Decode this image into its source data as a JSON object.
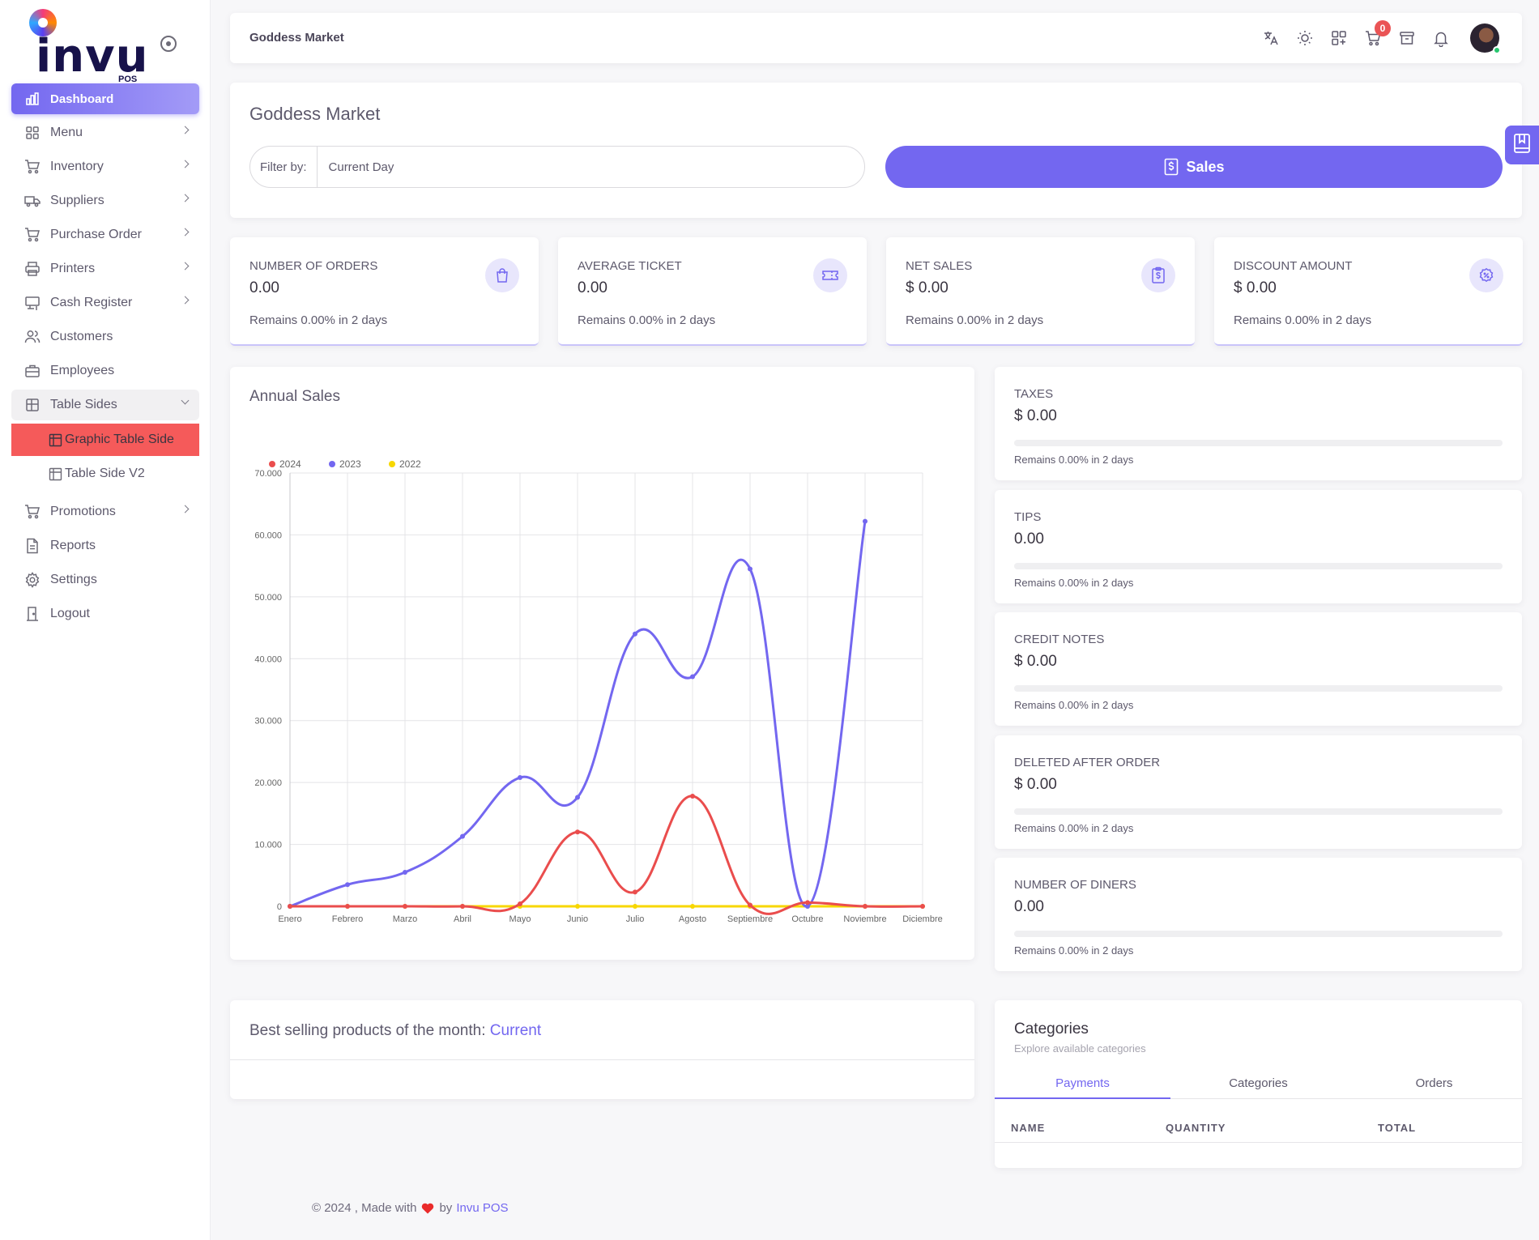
{
  "brand": {
    "logo_text": "invu",
    "logo_sub": "POS"
  },
  "sidebar": {
    "items": [
      {
        "label": "Dashboard",
        "icon": "chart-bar-icon",
        "active": true,
        "has_children": false
      },
      {
        "label": "Menu",
        "icon": "grid-icon",
        "has_children": true
      },
      {
        "label": "Inventory",
        "icon": "cart-icon",
        "has_children": true
      },
      {
        "label": "Suppliers",
        "icon": "truck-icon",
        "has_children": true
      },
      {
        "label": "Purchase Order",
        "icon": "cart-icon",
        "has_children": true
      },
      {
        "label": "Printers",
        "icon": "printer-icon",
        "has_children": true
      },
      {
        "label": "Cash Register",
        "icon": "cash-register-icon",
        "has_children": true
      },
      {
        "label": "Customers",
        "icon": "users-icon",
        "has_children": false
      },
      {
        "label": "Employees",
        "icon": "briefcase-icon",
        "has_children": false
      },
      {
        "label": "Table Sides",
        "icon": "table-icon",
        "has_children": true,
        "open": true,
        "children": [
          {
            "label": "Graphic Table Side",
            "selected": true
          },
          {
            "label": "Table Side V2"
          }
        ]
      },
      {
        "label": "Promotions",
        "icon": "cart-icon",
        "has_children": true
      },
      {
        "label": "Reports",
        "icon": "file-icon",
        "has_children": false
      },
      {
        "label": "Settings",
        "icon": "gear-icon",
        "has_children": false
      },
      {
        "label": "Logout",
        "icon": "door-icon",
        "has_children": false
      }
    ]
  },
  "topbar": {
    "title": "Goddess Market",
    "cart_count": "0"
  },
  "header": {
    "store_name": "Goddess Market",
    "filter_label": "Filter by:",
    "filter_value": "Current Day",
    "sales_button": "Sales"
  },
  "stats": [
    {
      "label": "NUMBER OF ORDERS",
      "value": "0.00",
      "remains": "Remains 0.00% in 2 days",
      "icon": "shopping-bag-icon"
    },
    {
      "label": "AVERAGE TICKET",
      "value": "0.00",
      "remains": "Remains 0.00% in 2 days",
      "icon": "ticket-icon"
    },
    {
      "label": "NET SALES",
      "value": "$ 0.00",
      "remains": "Remains 0.00% in 2 days",
      "icon": "clipboard-dollar-icon"
    },
    {
      "label": "DISCOUNT AMOUNT",
      "value": "$ 0.00",
      "remains": "Remains 0.00% in 2 days",
      "icon": "discount-icon"
    }
  ],
  "metrics": [
    {
      "label": "TAXES",
      "value": "$ 0.00",
      "remains": "Remains 0.00% in 2 days",
      "progress": 0
    },
    {
      "label": "TIPS",
      "value": "0.00",
      "remains": "Remains 0.00% in 2 days",
      "progress": 0
    },
    {
      "label": "CREDIT NOTES",
      "value": "$ 0.00",
      "remains": "Remains 0.00% in 2 days",
      "progress": 0
    },
    {
      "label": "DELETED AFTER ORDER",
      "value": "$ 0.00",
      "remains": "Remains 0.00% in 2 days",
      "progress": 0
    },
    {
      "label": "NUMBER OF DINERS",
      "value": "0.00",
      "remains": "Remains 0.00% in 2 days",
      "progress": 0
    }
  ],
  "chart_data": {
    "type": "line",
    "title": "Annual Sales",
    "categories": [
      "Enero",
      "Febrero",
      "Marzo",
      "Abril",
      "Mayo",
      "Junio",
      "Julio",
      "Agosto",
      "Septiembre",
      "Octubre",
      "Noviembre",
      "Diciembre"
    ],
    "series": [
      {
        "name": "2024",
        "color": "#ea4d4d",
        "values": [
          0,
          0,
          0,
          0,
          400,
          12000,
          2300,
          17800,
          200,
          600,
          0,
          0
        ]
      },
      {
        "name": "2023",
        "color": "#7367f0",
        "values": [
          0,
          3500,
          5500,
          11300,
          20800,
          17600,
          44000,
          37100,
          54500,
          0,
          62200,
          null
        ]
      },
      {
        "name": "2022",
        "color": "#f7d700",
        "values": [
          0,
          0,
          0,
          0,
          0,
          0,
          0,
          0,
          0,
          0,
          0,
          0
        ]
      }
    ],
    "ylim": [
      0,
      70000
    ],
    "yticks": [
      "0",
      "10.000",
      "20.000",
      "30.000",
      "40.000",
      "50.000",
      "60.000",
      "70.000"
    ],
    "legend": "top-left",
    "grid": true
  },
  "best_selling": {
    "title": "Best selling products of the month:",
    "highlight": "Current"
  },
  "categories": {
    "title": "Categories",
    "subtitle": "Explore available categories",
    "tabs": [
      "Payments",
      "Categories",
      "Orders"
    ],
    "active_tab": 0,
    "columns": [
      "NAME",
      "QUANTITY",
      "TOTAL"
    ]
  },
  "footer": {
    "text": "© 2024 , Made with",
    "by": "by",
    "brand": "Invu POS"
  }
}
